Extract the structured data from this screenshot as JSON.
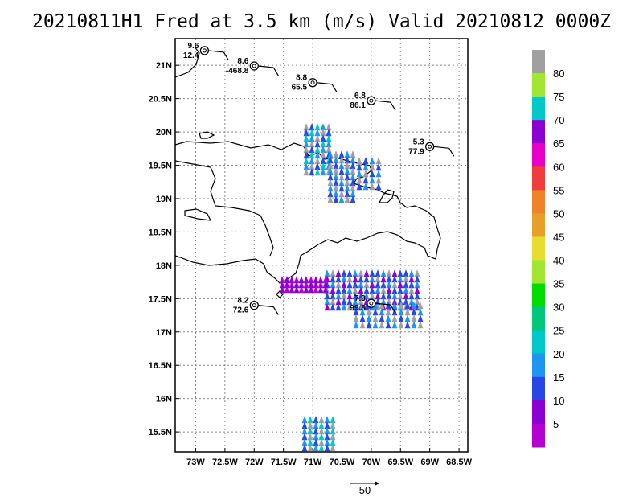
{
  "title": "20210811H1 Fred at 3.5 km (m/s) Valid 20210812 0000Z",
  "lon_ticks": [
    "73W",
    "72.5W",
    "72W",
    "71.5W",
    "71W",
    "70.5W",
    "70W",
    "69.5W",
    "69W",
    "68.5W"
  ],
  "lon_values": [
    -73,
    -72.5,
    -72,
    -71.5,
    -71,
    -70.5,
    -70,
    -69.5,
    -69,
    -68.5
  ],
  "lat_ticks": [
    "21N",
    "20.5N",
    "20N",
    "19.5N",
    "19N",
    "18.5N",
    "18N",
    "17.5N",
    "17N",
    "16.5N",
    "16N",
    "15.5N"
  ],
  "lat_values": [
    21,
    20.5,
    20,
    19.5,
    19,
    18.5,
    18,
    17.5,
    17,
    16.5,
    16,
    15.5
  ],
  "extent": {
    "lon_min": -73.35,
    "lon_max": -68.35,
    "lat_min": 15.2,
    "lat_max": 21.4
  },
  "colorbar": {
    "labels": [
      "80",
      "75",
      "70",
      "65",
      "60",
      "55",
      "50",
      "45",
      "40",
      "35",
      "30",
      "25",
      "20",
      "15",
      "10",
      "5"
    ],
    "colors": [
      "#a0a0a0",
      "#a0e632",
      "#00c8c8",
      "#8c00d2",
      "#e600c8",
      "#f03c3c",
      "#f08228",
      "#e6a028",
      "#e6dc32",
      "#a0e632",
      "#00dc00",
      "#00c878",
      "#00c8c8",
      "#1e96f0",
      "#2846e6",
      "#8c00d2",
      "#b400d2"
    ]
  },
  "stations": [
    {
      "top": "9.6",
      "bottom": "12.4",
      "lon": -72.85,
      "lat": 21.22
    },
    {
      "top": "8.6",
      "bottom": "-468.8",
      "lon": -72.0,
      "lat": 20.99
    },
    {
      "top": "8.8",
      "bottom": "65.5",
      "lon": -71.0,
      "lat": 20.74
    },
    {
      "top": "6.8",
      "bottom": "86.1",
      "lon": -70.0,
      "lat": 20.47
    },
    {
      "top": "5.3",
      "bottom": "77.9",
      "lon": -69.0,
      "lat": 19.78
    },
    {
      "top": "8.2",
      "bottom": "72.6",
      "lon": -72.0,
      "lat": 17.4
    },
    {
      "top": "7.3",
      "bottom": "99.8",
      "lon": -70.0,
      "lat": 17.43
    }
  ],
  "reference_vector": "50"
}
